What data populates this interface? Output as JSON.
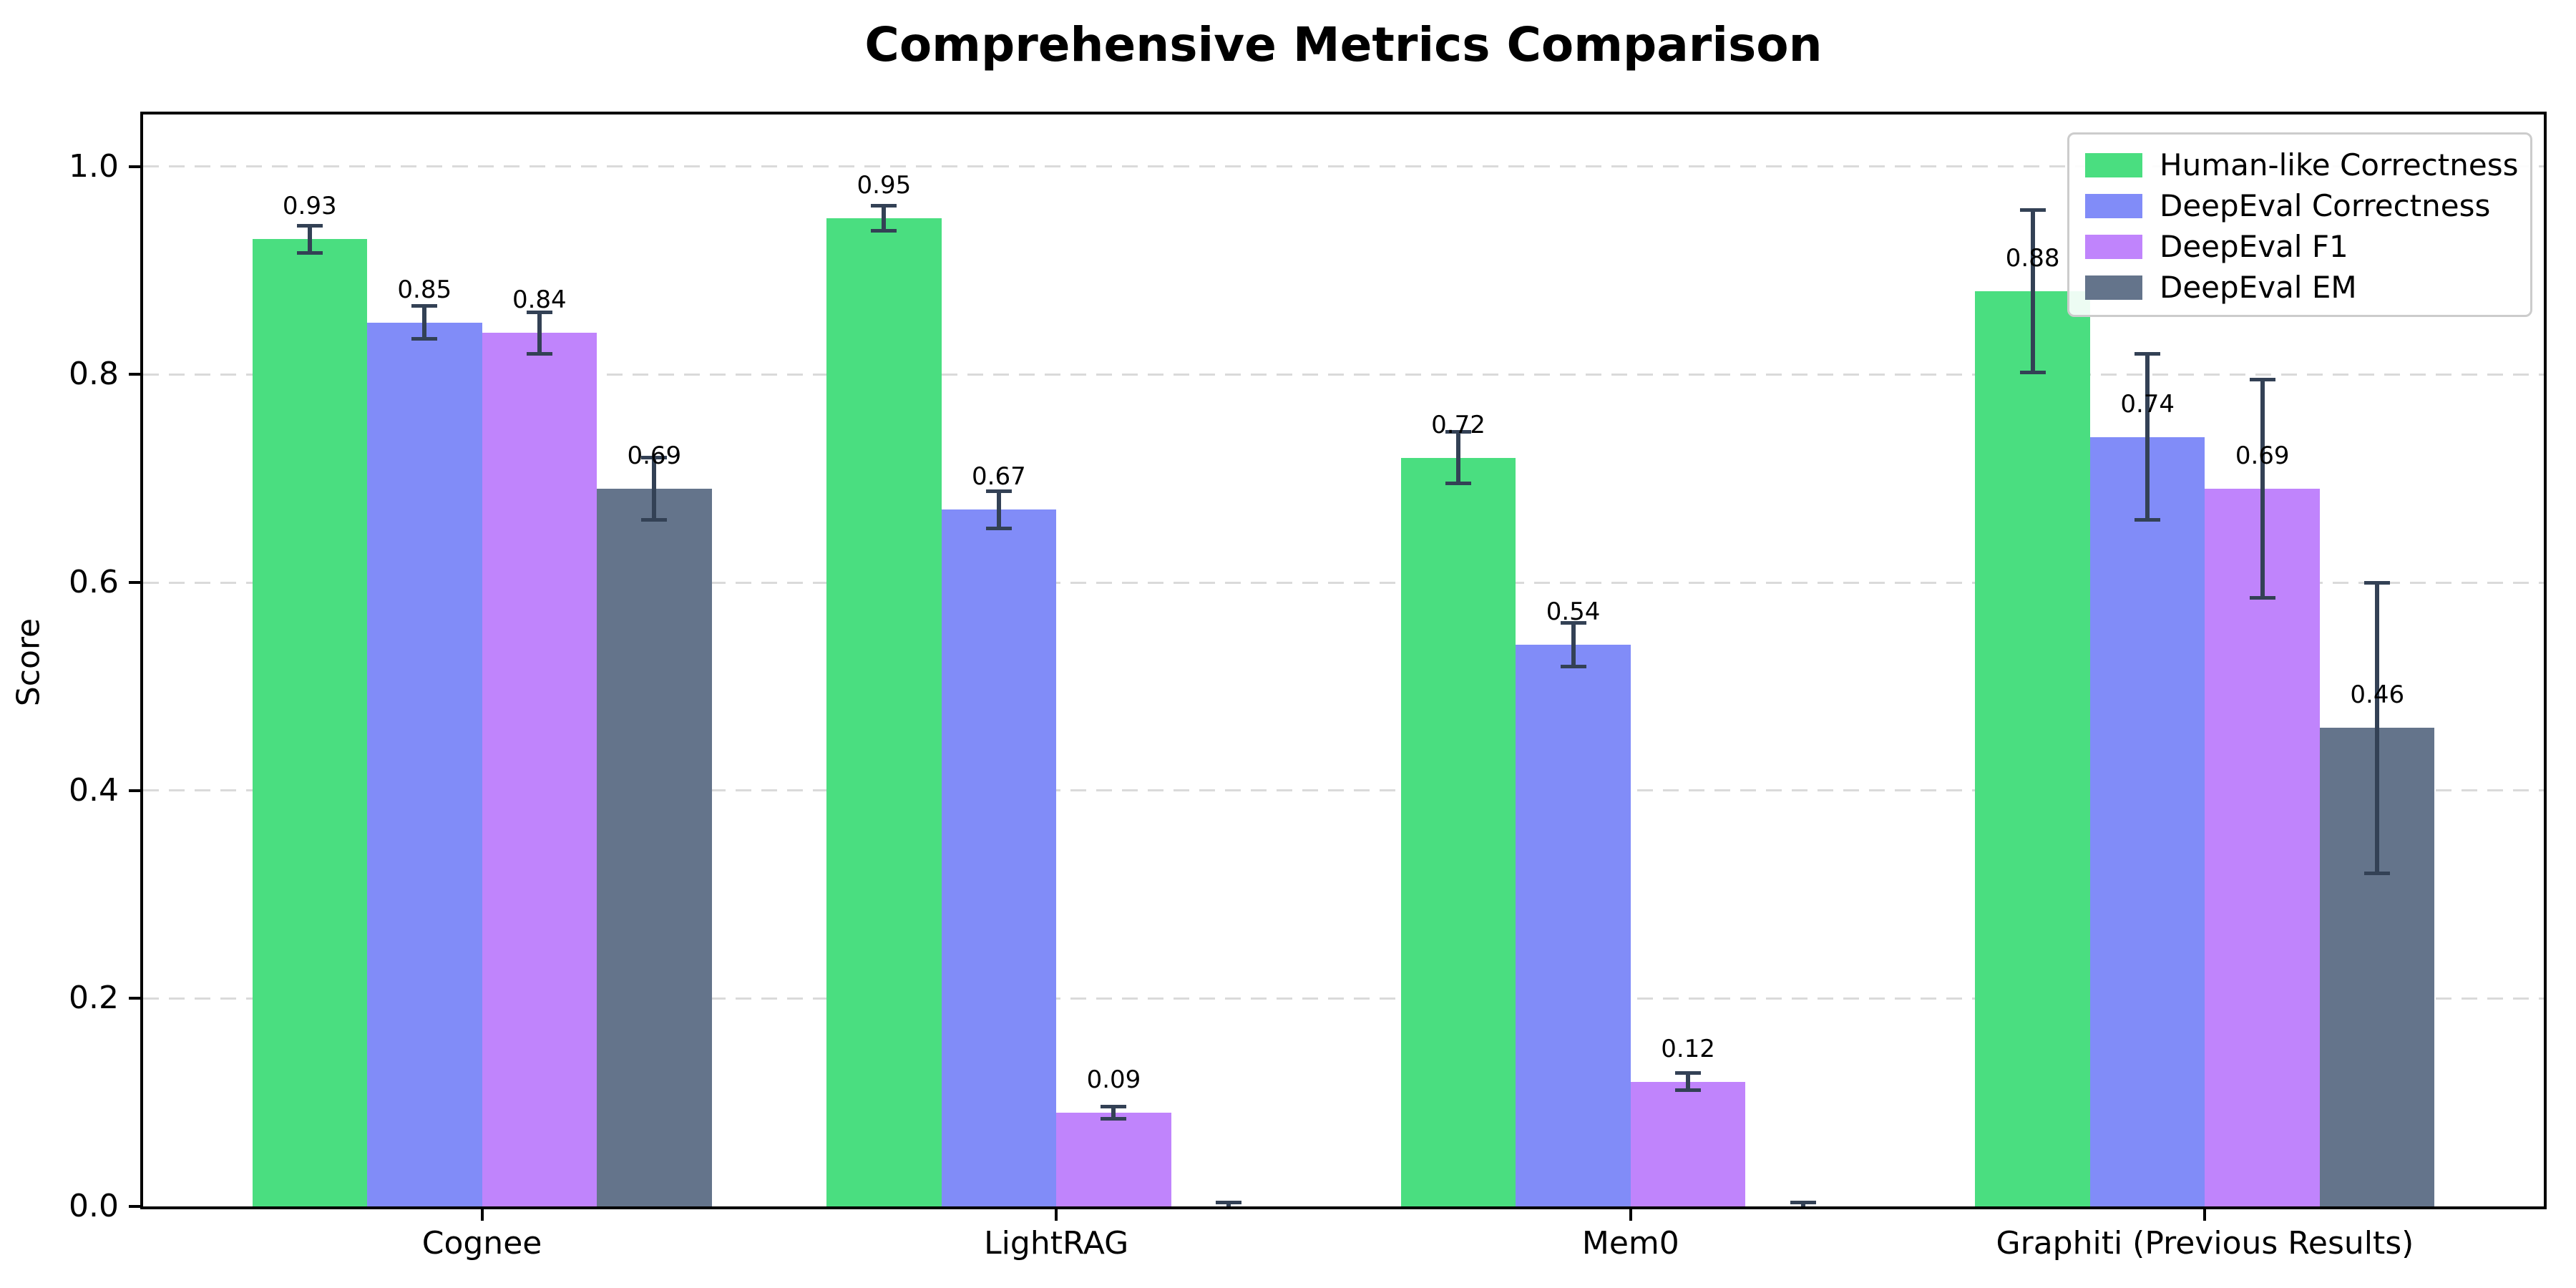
{
  "chart_data": {
    "type": "bar",
    "title": "Comprehensive Metrics Comparison",
    "ylabel": "Score",
    "xlabel": "",
    "categories": [
      "Cognee",
      "LightRAG",
      "Mem0",
      "Graphiti (Previous Results)"
    ],
    "series": [
      {
        "name": "Human-like Correctness",
        "color": "#4ade80",
        "values": [
          0.93,
          0.95,
          0.72,
          0.88
        ],
        "errors": [
          0.013,
          0.012,
          0.025,
          0.078
        ]
      },
      {
        "name": "DeepEval Correctness",
        "color": "#818cf8",
        "values": [
          0.85,
          0.67,
          0.54,
          0.74
        ],
        "errors": [
          0.016,
          0.018,
          0.021,
          0.08
        ]
      },
      {
        "name": "DeepEval F1",
        "color": "#c084fc",
        "values": [
          0.84,
          0.09,
          0.12,
          0.69
        ],
        "errors": [
          0.02,
          0.006,
          0.008,
          0.105
        ]
      },
      {
        "name": "DeepEval EM",
        "color": "#64748b",
        "values": [
          0.69,
          0.0,
          0.0,
          0.46
        ],
        "errors": [
          0.03,
          0.004,
          0.004,
          0.14
        ]
      }
    ],
    "bar_labels": [
      [
        "0.93",
        "0.95",
        "0.72",
        "0.88"
      ],
      [
        "0.85",
        "0.67",
        "0.54",
        "0.74"
      ],
      [
        "0.84",
        "0.09",
        "0.12",
        "0.69"
      ],
      [
        "0.69",
        "",
        "",
        "0.46"
      ]
    ],
    "yticks": [
      "0.0",
      "0.2",
      "0.4",
      "0.6",
      "0.8",
      "1.0"
    ],
    "ytick_values": [
      0.0,
      0.2,
      0.4,
      0.6,
      0.8,
      1.0
    ],
    "ylim": [
      0,
      1.05
    ],
    "grid": "horizontal-dashed",
    "legend_position": "upper right",
    "errorbar_color": "#334155",
    "grid_color": "#dadada",
    "axis_color": "#000000",
    "background": "#ffffff"
  }
}
